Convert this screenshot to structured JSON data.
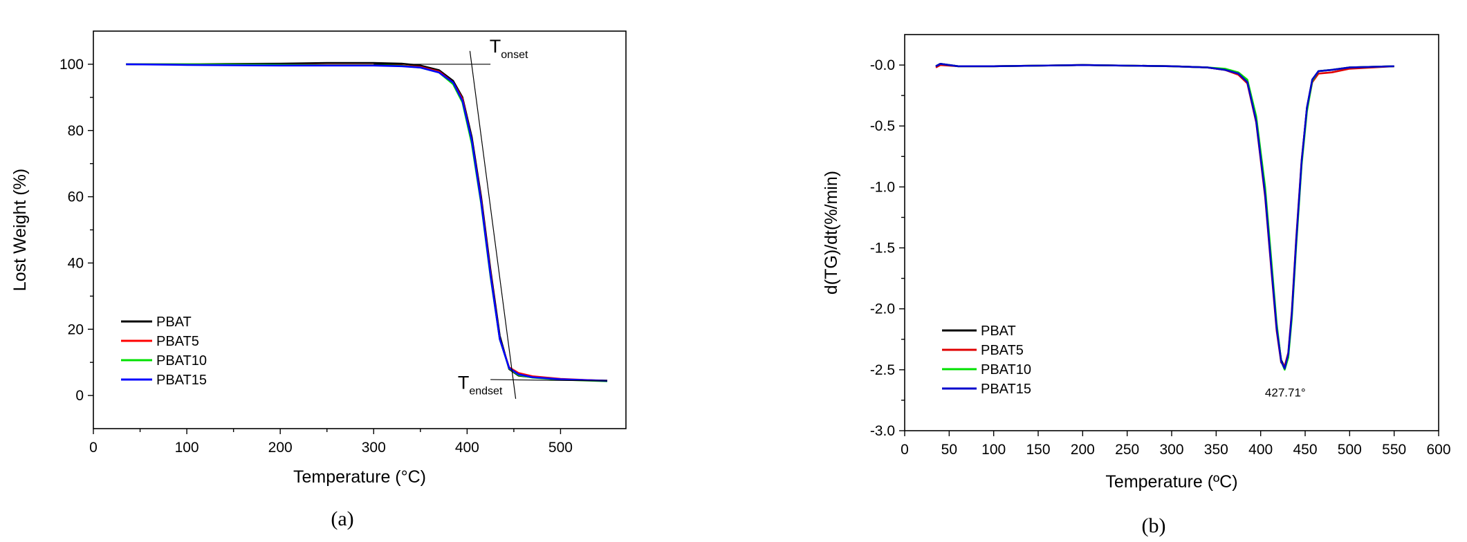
{
  "chart_data": [
    {
      "type": "line",
      "panel_label": "(a)",
      "xlabel": "Temperature (°C)",
      "ylabel": "Lost Weight (%)",
      "xlim": [
        0,
        570
      ],
      "ylim": [
        -10,
        110
      ],
      "xticks": [
        0,
        100,
        200,
        300,
        400,
        500
      ],
      "yticks": [
        0,
        20,
        40,
        60,
        80,
        100
      ],
      "legend_position": "bottom-left",
      "annotations": [
        {
          "base": "T",
          "sub": "onset"
        },
        {
          "base": "T",
          "sub": "endset"
        }
      ],
      "series": [
        {
          "name": "PBAT",
          "color": "#000000",
          "x": [
            35,
            100,
            200,
            250,
            300,
            330,
            350,
            370,
            385,
            395,
            405,
            415,
            425,
            435,
            445,
            455,
            470,
            500,
            550
          ],
          "y": [
            100,
            100,
            100.2,
            100.4,
            100.4,
            100.2,
            99.6,
            98.2,
            95,
            90,
            78,
            60,
            38,
            18,
            8,
            6,
            5.5,
            4.8,
            4.5
          ]
        },
        {
          "name": "PBAT5",
          "color": "#ff0000",
          "x": [
            35,
            100,
            200,
            250,
            300,
            330,
            350,
            370,
            385,
            395,
            405,
            415,
            425,
            435,
            445,
            455,
            470,
            500,
            550
          ],
          "y": [
            100,
            100,
            99.8,
            99.8,
            99.8,
            99.6,
            99.2,
            97.8,
            94.5,
            89.5,
            77,
            59,
            37,
            17,
            8.5,
            6.8,
            5.8,
            5,
            4.4
          ]
        },
        {
          "name": "PBAT10",
          "color": "#00e000",
          "x": [
            35,
            100,
            200,
            250,
            300,
            330,
            350,
            370,
            385,
            395,
            405,
            415,
            425,
            435,
            445,
            455,
            470,
            500,
            550
          ],
          "y": [
            100,
            100,
            99.8,
            99.7,
            99.7,
            99.5,
            99,
            97.5,
            94,
            88.5,
            76,
            58,
            36,
            17,
            8.2,
            6.2,
            5.4,
            4.8,
            4.3
          ]
        },
        {
          "name": "PBAT15",
          "color": "#0000ff",
          "x": [
            35,
            100,
            200,
            250,
            300,
            330,
            350,
            370,
            385,
            395,
            405,
            415,
            425,
            435,
            445,
            455,
            470,
            500,
            550
          ],
          "y": [
            100,
            99.8,
            99.6,
            99.6,
            99.6,
            99.4,
            99,
            97.5,
            94.5,
            89,
            77,
            58.5,
            36.5,
            17,
            8.3,
            6.4,
            5.5,
            4.9,
            4.4
          ]
        }
      ]
    },
    {
      "type": "line",
      "panel_label": "(b)",
      "xlabel": "Temperature (ºC)",
      "ylabel": "d(TG)/dt(%/min)",
      "xlim": [
        0,
        600
      ],
      "ylim": [
        -3.0,
        0.25
      ],
      "xticks": [
        0,
        50,
        100,
        150,
        200,
        250,
        300,
        350,
        400,
        450,
        500,
        550,
        600
      ],
      "yticks": [
        -3.0,
        -2.5,
        -2.0,
        -1.5,
        -1.0,
        -0.5,
        0.0
      ],
      "ytick_labels": [
        "-3.0",
        "-2.5",
        "-2.0",
        "-1.5",
        "-1.0",
        "-0.5",
        "-0.0"
      ],
      "legend_position": "bottom-left",
      "annotations": [
        {
          "text": "427.71°",
          "x": 427.71
        }
      ],
      "series": [
        {
          "name": "PBAT",
          "color": "#000000",
          "x": [
            35,
            40,
            60,
            100,
            200,
            300,
            340,
            360,
            375,
            385,
            395,
            405,
            412,
            418,
            423,
            427,
            431,
            435,
            440,
            446,
            452,
            458,
            465,
            480,
            500,
            550
          ],
          "y": [
            -0.01,
            0.01,
            -0.01,
            -0.01,
            0,
            -0.01,
            -0.02,
            -0.04,
            -0.07,
            -0.14,
            -0.45,
            -1.05,
            -1.65,
            -2.15,
            -2.42,
            -2.48,
            -2.38,
            -2.05,
            -1.45,
            -0.8,
            -0.35,
            -0.12,
            -0.05,
            -0.04,
            -0.02,
            -0.01
          ]
        },
        {
          "name": "PBAT5",
          "color": "#e00000",
          "x": [
            35,
            40,
            60,
            100,
            200,
            300,
            340,
            360,
            375,
            385,
            395,
            405,
            412,
            418,
            423,
            427,
            431,
            435,
            440,
            446,
            452,
            458,
            465,
            480,
            500,
            550
          ],
          "y": [
            -0.02,
            0,
            -0.01,
            -0.01,
            0,
            -0.01,
            -0.02,
            -0.04,
            -0.08,
            -0.15,
            -0.47,
            -1.08,
            -1.68,
            -2.18,
            -2.44,
            -2.47,
            -2.36,
            -2.02,
            -1.42,
            -0.78,
            -0.36,
            -0.14,
            -0.07,
            -0.06,
            -0.03,
            -0.01
          ]
        },
        {
          "name": "PBAT10",
          "color": "#00e000",
          "x": [
            35,
            40,
            60,
            100,
            200,
            300,
            340,
            360,
            375,
            385,
            395,
            405,
            412,
            418,
            423,
            427,
            431,
            435,
            440,
            446,
            452,
            458,
            465,
            480,
            500,
            550
          ],
          "y": [
            -0.01,
            0.01,
            -0.01,
            -0.01,
            0,
            -0.01,
            -0.02,
            -0.03,
            -0.06,
            -0.12,
            -0.42,
            -1.0,
            -1.6,
            -2.12,
            -2.43,
            -2.5,
            -2.4,
            -2.08,
            -1.48,
            -0.82,
            -0.38,
            -0.13,
            -0.05,
            -0.04,
            -0.02,
            -0.01
          ]
        },
        {
          "name": "PBAT15",
          "color": "#0000cc",
          "x": [
            35,
            40,
            60,
            100,
            200,
            300,
            340,
            360,
            375,
            385,
            395,
            405,
            412,
            418,
            423,
            427,
            431,
            435,
            440,
            446,
            452,
            458,
            465,
            480,
            500,
            550
          ],
          "y": [
            -0.01,
            0.01,
            -0.01,
            -0.01,
            0,
            -0.01,
            -0.02,
            -0.04,
            -0.07,
            -0.14,
            -0.46,
            -1.06,
            -1.66,
            -2.16,
            -2.43,
            -2.49,
            -2.37,
            -2.04,
            -1.44,
            -0.79,
            -0.35,
            -0.12,
            -0.05,
            -0.04,
            -0.02,
            -0.01
          ]
        }
      ]
    }
  ]
}
